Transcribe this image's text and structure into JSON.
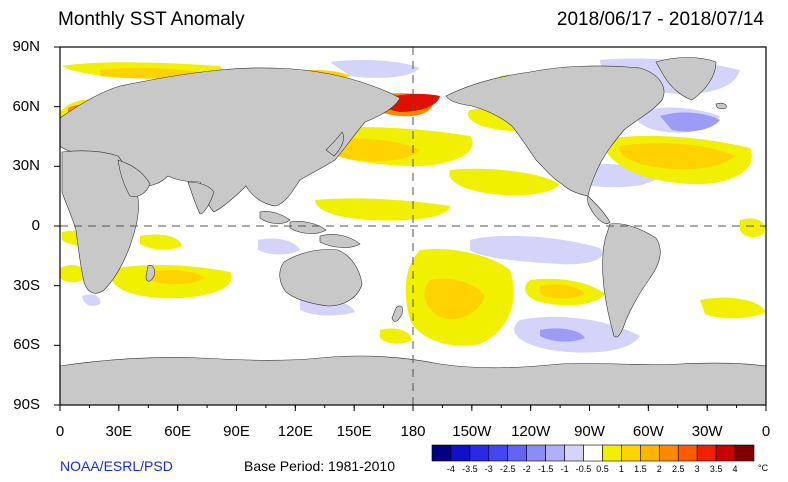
{
  "title": "Monthly SST Anomaly",
  "date_range": "2018/06/17 - 2018/07/14",
  "credit": "NOAA/ESRL/PSD",
  "base_period": "Base Period: 1981-2010",
  "lat_labels": [
    "90N",
    "60N",
    "30N",
    "0",
    "30S",
    "60S",
    "90S"
  ],
  "lon_labels": [
    "0",
    "30E",
    "60E",
    "90E",
    "120E",
    "150E",
    "180",
    "150W",
    "120W",
    "90W",
    "60W",
    "30W",
    "0"
  ],
  "colorbar": {
    "labels": [
      "-4",
      "-3.5",
      "-3",
      "-2.5",
      "-2",
      "-1.5",
      "-1",
      "-0.5",
      "0.5",
      "1",
      "1.5",
      "2",
      "2.5",
      "3",
      "3.5",
      "4"
    ],
    "unit": "°C",
    "colors": [
      "#000080",
      "#1010c8",
      "#2a2ae6",
      "#4646f0",
      "#6464f4",
      "#8c8cf6",
      "#b0b0f8",
      "#d4d4fa",
      "#ffffff",
      "#f0f000",
      "#ffd200",
      "#ffb400",
      "#ff8a00",
      "#ff5a00",
      "#f02000",
      "#c80000",
      "#800000"
    ]
  },
  "map_colors": {
    "land": "#c8c8c8",
    "ocean_neutral": "#ffffff",
    "anom_pos_weak": "#f0f000",
    "anom_pos_mid": "#ffd200",
    "anom_pos_strong": "#ffb400",
    "anom_pos_hot": "#ff5a00",
    "anom_pos_extreme": "#e01000",
    "anom_neg_weak": "#d4d4fa",
    "anom_neg_mid": "#9c9cf6",
    "anom_neg_strong": "#2a2ae6"
  }
}
